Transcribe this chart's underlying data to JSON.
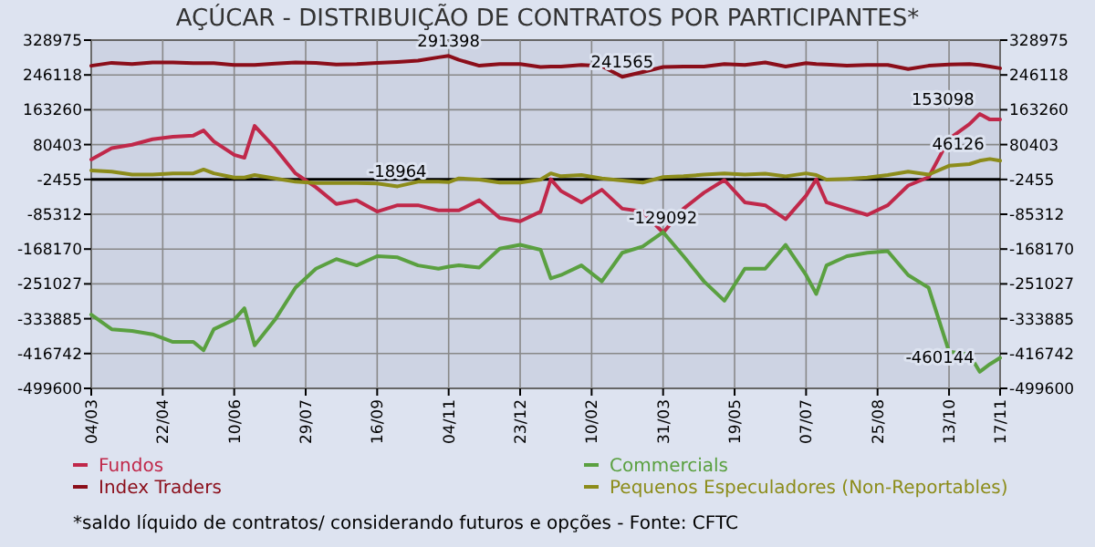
{
  "chart_data": {
    "type": "line",
    "title": "AÇÚCAR - DISTRIBUIÇÃO DE CONTRATOS POR PARTICIPANTES*",
    "x": [
      "2008-03-04",
      "2008-03-18",
      "2008-04-01",
      "2008-04-15",
      "2008-04-29",
      "2008-05-13",
      "2008-05-20",
      "2008-05-27",
      "2008-06-10",
      "2008-06-17",
      "2008-06-24",
      "2008-07-08",
      "2008-07-22",
      "2008-08-05",
      "2008-08-19",
      "2008-09-02",
      "2008-09-16",
      "2008-09-30",
      "2008-10-14",
      "2008-10-28",
      "2008-11-04",
      "2008-11-11",
      "2008-11-25",
      "2008-12-09",
      "2008-12-23",
      "2009-01-06",
      "2009-01-13",
      "2009-01-20",
      "2009-02-03",
      "2009-02-17",
      "2009-03-03",
      "2009-03-17",
      "2009-03-31",
      "2009-04-14",
      "2009-04-28",
      "2009-05-12",
      "2009-05-26",
      "2009-06-09",
      "2009-06-23",
      "2009-07-07",
      "2009-07-14",
      "2009-07-21",
      "2009-08-04",
      "2009-08-18",
      "2009-09-01",
      "2009-09-15",
      "2009-09-29",
      "2009-10-13",
      "2009-10-27",
      "2009-11-03",
      "2009-11-10",
      "2009-11-17"
    ],
    "series": [
      {
        "name": "Fundos",
        "color": "#c0284a",
        "values": [
          45000,
          72000,
          80000,
          93000,
          99000,
          102000,
          114000,
          88000,
          56000,
          49000,
          125000,
          72000,
          12000,
          -21000,
          -61000,
          -52000,
          -79000,
          -64000,
          -64000,
          -76000,
          -76000,
          -76000,
          -52000,
          -94000,
          -102000,
          -79000,
          -2000,
          -30000,
          -57000,
          -27000,
          -72000,
          -79000,
          -129092,
          -72000,
          -34000,
          -4000,
          -57000,
          -64000,
          -97000,
          -41000,
          -2000,
          -57000,
          -72000,
          -87000,
          -64000,
          -17000,
          3000,
          94000,
          129000,
          153098,
          140000,
          140000
        ]
      },
      {
        "name": "Index Traders",
        "color": "#8b0e1a",
        "values": [
          268000,
          275000,
          272000,
          276000,
          276000,
          274000,
          274000,
          274000,
          270000,
          270000,
          270000,
          273000,
          276000,
          275000,
          271000,
          272000,
          275000,
          277000,
          280000,
          288000,
          291398,
          282000,
          268000,
          272000,
          272000,
          265000,
          266000,
          266000,
          270000,
          267000,
          241565,
          253000,
          265000,
          266000,
          266000,
          272000,
          270000,
          276000,
          266000,
          274000,
          272000,
          271000,
          268000,
          270000,
          270000,
          260000,
          268000,
          271000,
          272000,
          270000,
          266000,
          262000
        ]
      },
      {
        "name": "Commercials",
        "color": "#5aa040",
        "values": [
          -324000,
          -359000,
          -363000,
          -371000,
          -389000,
          -389000,
          -409000,
          -359000,
          -336000,
          -309000,
          -397000,
          -336000,
          -260000,
          -215000,
          -192000,
          -207000,
          -185000,
          -188000,
          -207000,
          -215000,
          -210000,
          -207000,
          -212000,
          -167000,
          -158000,
          -170000,
          -238000,
          -230000,
          -207000,
          -245000,
          -177000,
          -162000,
          -128000,
          -185000,
          -245000,
          -291000,
          -215000,
          -215000,
          -158000,
          -230000,
          -275000,
          -207000,
          -185000,
          -177000,
          -173000,
          -230000,
          -260000,
          -412000,
          -419000,
          -460144,
          -442000,
          -427000
        ]
      },
      {
        "name": "Pequenos Especuladores (Non-Reportables)",
        "color": "#8c8c1a",
        "values": [
          19000,
          16000,
          9000,
          9000,
          12000,
          12000,
          21000,
          12000,
          2000,
          2000,
          8000,
          0,
          -8000,
          -11000,
          -11000,
          -11000,
          -12000,
          -18964,
          -8000,
          -8000,
          -9000,
          0,
          -3000,
          -10000,
          -10000,
          -3000,
          12000,
          5000,
          8000,
          0,
          -5000,
          -10000,
          3000,
          5000,
          9000,
          12000,
          9000,
          11000,
          5000,
          12000,
          8000,
          -3000,
          -1000,
          2000,
          8000,
          16000,
          9000,
          30000,
          34000,
          42000,
          46126,
          42000
        ]
      }
    ],
    "xlim": [
      "2008-03-04",
      "2009-11-17"
    ],
    "xticks": [
      {
        "value": "2008-03-04",
        "label": "04/03"
      },
      {
        "value": "2008-04-22",
        "label": "22/04"
      },
      {
        "value": "2008-06-10",
        "label": "10/06"
      },
      {
        "value": "2008-07-29",
        "label": "29/07"
      },
      {
        "value": "2008-09-16",
        "label": "16/09"
      },
      {
        "value": "2008-11-04",
        "label": "04/11"
      },
      {
        "value": "2008-12-23",
        "label": "23/12"
      },
      {
        "value": "2009-02-10",
        "label": "10/02"
      },
      {
        "value": "2009-03-31",
        "label": "31/03"
      },
      {
        "value": "2009-05-19",
        "label": "19/05"
      },
      {
        "value": "2009-07-07",
        "label": "07/07"
      },
      {
        "value": "2009-08-25",
        "label": "25/08"
      },
      {
        "value": "2009-10-13",
        "label": "13/10"
      },
      {
        "value": "2009-11-17",
        "label": "17/11"
      }
    ],
    "ylim": [
      -499600,
      328975
    ],
    "yticks": [
      -499600,
      -416742,
      -333885,
      -251027,
      -168170,
      -85312,
      -2455,
      80403,
      163260,
      246118,
      328975
    ],
    "y2lim": [
      -499600,
      328975
    ],
    "y2ticks": [
      -499600,
      -416742,
      -333885,
      -251027,
      -168170,
      -85312,
      -2455,
      80403,
      163260,
      246118,
      328975
    ],
    "ref_lines": [
      {
        "axis": "y",
        "value": -2455,
        "color": "#000000"
      }
    ],
    "annotations": [
      {
        "text": "291398",
        "x": "2008-11-04",
        "y": 291398
      },
      {
        "text": "241565",
        "x": "2009-03-03",
        "y": 241565
      },
      {
        "text": "-18964",
        "x": "2008-09-30",
        "y": -18964
      },
      {
        "text": "-129092",
        "x": "2009-03-31",
        "y": -129092
      },
      {
        "text": "153098",
        "x": "2009-11-03",
        "y": 153098
      },
      {
        "text": "46126",
        "x": "2009-11-10",
        "y": 46126
      },
      {
        "text": "-460144",
        "x": "2009-11-03",
        "y": -460144
      },
      "*saldo líquido de contratos/ considerando futuros e opções - Fonte: CFTC"
    ],
    "grid": true,
    "legend": "bottom",
    "marker": "none",
    "line_style": "solid"
  }
}
